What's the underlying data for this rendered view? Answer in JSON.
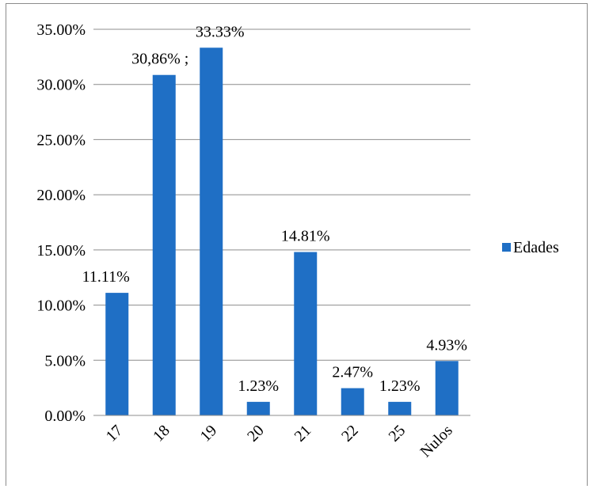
{
  "chart_data": {
    "type": "bar",
    "categories": [
      "17",
      "18",
      "19",
      "20",
      "21",
      "22",
      "25",
      "Nulos"
    ],
    "values": [
      11.11,
      30.86,
      33.33,
      1.23,
      14.81,
      2.47,
      1.23,
      4.93
    ],
    "data_labels": [
      "11.11%",
      "30,86% ;",
      "33.33%",
      "1.23%",
      "14.81%",
      "2.47%",
      "1.23%",
      "4.93%"
    ],
    "series": [
      {
        "name": "Edades",
        "color": "#1f6fc5"
      }
    ],
    "y_ticks": [
      "0.00%",
      "5.00%",
      "10.00%",
      "15.00%",
      "20.00%",
      "25.00%",
      "30.00%",
      "35.00%"
    ],
    "ylim": [
      0,
      35
    ],
    "grid": true,
    "legend_position": "right"
  }
}
